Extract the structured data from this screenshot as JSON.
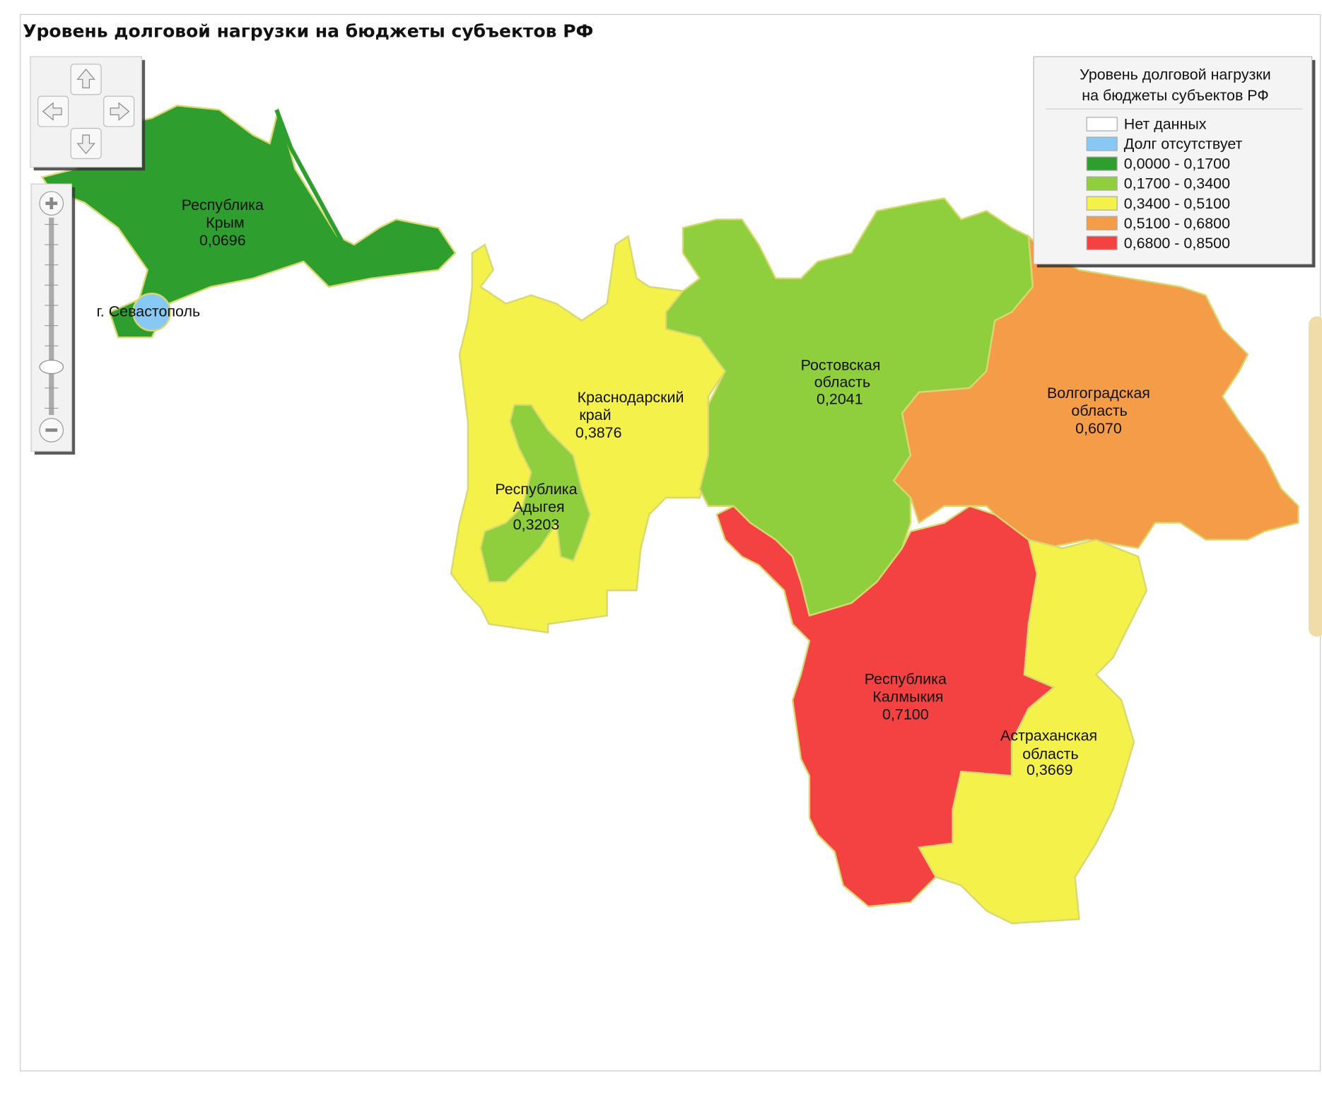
{
  "header": {
    "title": "Уровень долговой нагрузки на бюджеты субъектов РФ"
  },
  "regions": [
    {
      "name_lines": [
        "Республика",
        "Крым"
      ],
      "value": "0,0696",
      "color": "#2e9e2e"
    },
    {
      "name_lines": [
        "г. Севастополь"
      ],
      "color": "#87c8f5"
    },
    {
      "name_lines": [
        "Краснодарский",
        "край"
      ],
      "value": "0,3876",
      "color": "#f4f24a"
    },
    {
      "name_lines": [
        "Республика",
        "Адыгея"
      ],
      "value": "0,3203",
      "color": "#8fce3c"
    },
    {
      "name_lines": [
        "Ростовская",
        "область"
      ],
      "value": "0,2041",
      "color": "#8fce3c"
    },
    {
      "name_lines": [
        "Волгоградская",
        "область"
      ],
      "value": "0,6070",
      "color": "#f59c48"
    },
    {
      "name_lines": [
        "Республика",
        "Калмыкия"
      ],
      "value": "0,7100",
      "color": "#f44242"
    },
    {
      "name_lines": [
        "Астраханская",
        "область"
      ],
      "value": "0,3669",
      "color": "#f4f24a"
    }
  ],
  "legend": {
    "title_lines": [
      "Уровень долговой нагрузки",
      "на бюджеты субъектов РФ"
    ],
    "items": [
      {
        "label": "Нет данных",
        "color": "#ffffff"
      },
      {
        "label": "Долг отсутствует",
        "color": "#87c8f5"
      },
      {
        "label": "0,0000 - 0,1700",
        "color": "#2e9e2e"
      },
      {
        "label": "0,1700 - 0,3400",
        "color": "#8fce3c"
      },
      {
        "label": "0,3400 - 0,5100",
        "color": "#f4f24a"
      },
      {
        "label": "0,5100 - 0,6800",
        "color": "#f59c48"
      },
      {
        "label": "0,6800 - 0,8500",
        "color": "#f44242"
      }
    ]
  }
}
